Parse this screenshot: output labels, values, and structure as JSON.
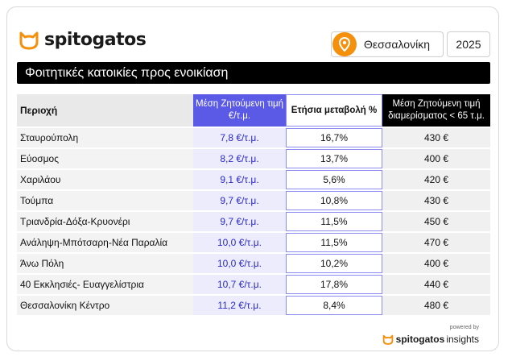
{
  "header": {
    "brand": "spitogatos",
    "city": "Θεσσαλονίκη",
    "year": "2025"
  },
  "title": "Φοιτητικές κατοικίες προς ενοικίαση",
  "table": {
    "headers": {
      "area": "Περιοχή",
      "price": "Μέση Ζητούμενη τιμή €/τ.μ.",
      "change": "Ετήσια μεταβολή %",
      "small": "Μέση Ζητούμενη τιμή διαμερίσματος < 65 τ.μ."
    },
    "rows": [
      {
        "area": "Σταυρούπολη",
        "price": "7,8 €/τ.μ.",
        "change": "16,7%",
        "small": "430 €"
      },
      {
        "area": "Εύοσμος",
        "price": "8,2 €/τ.μ.",
        "change": "13,7%",
        "small": "400 €"
      },
      {
        "area": "Χαριλάου",
        "price": "9,1 €/τ.μ.",
        "change": "5,6%",
        "small": "420 €"
      },
      {
        "area": "Τούμπα",
        "price": "9,7 €/τ.μ.",
        "change": "10,8%",
        "small": "430 €"
      },
      {
        "area": "Τριανδρία-Δόξα-Κρυονέρι",
        "price": "9,7 €/τ.μ.",
        "change": "11,5%",
        "small": "450 €"
      },
      {
        "area": "Ανάληψη-Μπότσαρη-Νέα Παραλία",
        "price": "10,0 €/τ.μ.",
        "change": "11,5%",
        "small": "470 €"
      },
      {
        "area": "Άνω Πόλη",
        "price": "10,0 €/τ.μ.",
        "change": "10,2%",
        "small": "400 €"
      },
      {
        "area": "40 Εκκλησιές- Ευαγγελίστρια",
        "price": "10,7 €/τ.μ.",
        "change": "17,8%",
        "small": "440 €"
      },
      {
        "area": "Θεσσαλονίκη Κέντρο",
        "price": "11,2 €/τ.μ.",
        "change": "8,4%",
        "small": "480 €"
      }
    ]
  },
  "footer": {
    "powered_by": "powered by",
    "brand": "spitogatos",
    "product": "insights"
  },
  "colors": {
    "accent_orange": "#f5900c",
    "price_header": "#5a5ae6",
    "price_text": "#2a2ac8",
    "title_bar": "#000000"
  },
  "icons": {
    "logo": "cat-icon",
    "location": "map-pin-icon"
  }
}
